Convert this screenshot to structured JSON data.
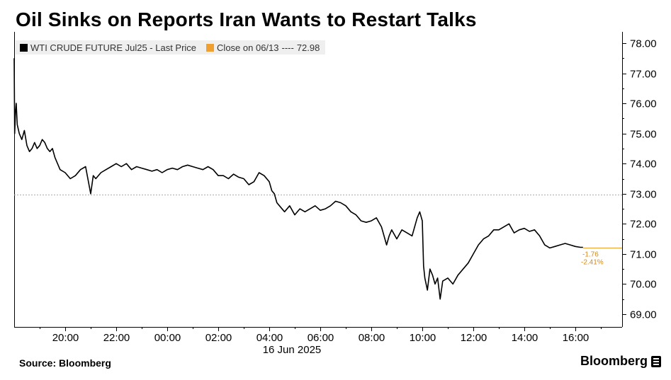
{
  "title": "Oil Sinks on Reports Iran Wants to Restart Talks",
  "legend": {
    "series_label": "WTI CRUDE FUTURE Jul25 - Last Price",
    "close_label": "Close on 06/13",
    "close_dashes": "----",
    "close_value": "72.98"
  },
  "source": "Source:  Bloomberg",
  "brand": "Bloomberg",
  "chart_data": {
    "type": "line",
    "title": "Oil Sinks on Reports Iran Wants to Restart Talks",
    "xlabel": "16 Jun 2025",
    "ylabel": "",
    "x_unit": "hours (time of day)",
    "xlim": [
      18.0,
      17.55
    ],
    "ylim": [
      68.8,
      78.2
    ],
    "x_ticks": [
      {
        "x": 20.0,
        "label": "20:00"
      },
      {
        "x": 22.0,
        "label": "22:00"
      },
      {
        "x": 24.0,
        "label": "00:00"
      },
      {
        "x": 26.0,
        "label": "02:00"
      },
      {
        "x": 28.0,
        "label": "04:00"
      },
      {
        "x": 30.0,
        "label": "06:00"
      },
      {
        "x": 32.0,
        "label": "08:00"
      },
      {
        "x": 34.0,
        "label": "10:00"
      },
      {
        "x": 36.0,
        "label": "12:00"
      },
      {
        "x": 38.0,
        "label": "14:00"
      },
      {
        "x": 40.0,
        "label": "16:00"
      }
    ],
    "date_label": "16 Jun 2025",
    "y_ticks": [
      "69.00",
      "70.00",
      "71.00",
      "72.00",
      "73.00",
      "74.00",
      "75.00",
      "76.00",
      "77.00",
      "78.00"
    ],
    "grid": false,
    "legend_position": "top-left",
    "colors": {
      "series": "#000000",
      "close": "#f0a030"
    },
    "reference_line": {
      "name": "Close on 06/13",
      "value": 72.98
    },
    "annotations": {
      "change": "-1.76",
      "change_pct": "-2.41%",
      "last": 71.22
    },
    "series": [
      {
        "name": "WTI CRUDE FUTURE Jul25 - Last Price",
        "x": [
          18.0,
          18.02,
          18.05,
          18.08,
          18.12,
          18.2,
          18.3,
          18.4,
          18.5,
          18.6,
          18.7,
          18.8,
          18.9,
          19.0,
          19.1,
          19.2,
          19.3,
          19.4,
          19.5,
          19.6,
          19.7,
          19.8,
          20.0,
          20.2,
          20.4,
          20.6,
          20.8,
          21.0,
          21.05,
          21.1,
          21.2,
          21.4,
          21.6,
          21.8,
          22.0,
          22.2,
          22.4,
          22.6,
          22.8,
          23.0,
          23.2,
          23.4,
          23.6,
          23.8,
          24.0,
          24.2,
          24.4,
          24.6,
          24.8,
          25.0,
          25.2,
          25.4,
          25.6,
          25.8,
          26.0,
          26.2,
          26.4,
          26.6,
          26.8,
          27.0,
          27.2,
          27.4,
          27.6,
          27.8,
          28.0,
          28.1,
          28.2,
          28.3,
          28.4,
          28.6,
          28.8,
          29.0,
          29.2,
          29.4,
          29.6,
          29.8,
          30.0,
          30.2,
          30.4,
          30.6,
          30.8,
          31.0,
          31.2,
          31.4,
          31.6,
          31.8,
          32.0,
          32.2,
          32.4,
          32.6,
          32.7,
          32.8,
          33.0,
          33.2,
          33.4,
          33.6,
          33.8,
          33.9,
          34.0,
          34.05,
          34.1,
          34.2,
          34.3,
          34.4,
          34.5,
          34.6,
          34.7,
          34.8,
          35.0,
          35.2,
          35.4,
          35.6,
          35.8,
          36.0,
          36.2,
          36.4,
          36.6,
          36.8,
          37.0,
          37.2,
          37.4,
          37.6,
          37.8,
          38.0,
          38.2,
          38.4,
          38.6,
          38.8,
          39.0,
          39.2,
          39.4,
          39.6,
          39.8,
          40.0,
          40.2,
          40.3
        ],
        "values": [
          77.5,
          75.0,
          75.7,
          76.0,
          75.3,
          75.0,
          74.8,
          75.1,
          74.6,
          74.4,
          74.5,
          74.7,
          74.5,
          74.6,
          74.8,
          74.7,
          74.5,
          74.4,
          74.5,
          74.2,
          74.0,
          73.8,
          73.7,
          73.5,
          73.6,
          73.8,
          73.9,
          73.0,
          73.3,
          73.6,
          73.5,
          73.7,
          73.8,
          73.9,
          74.0,
          73.9,
          74.0,
          73.8,
          73.9,
          73.85,
          73.8,
          73.75,
          73.8,
          73.7,
          73.8,
          73.85,
          73.8,
          73.9,
          73.95,
          73.9,
          73.85,
          73.8,
          73.9,
          73.8,
          73.6,
          73.6,
          73.5,
          73.65,
          73.55,
          73.5,
          73.3,
          73.4,
          73.7,
          73.6,
          73.4,
          73.1,
          73.0,
          72.7,
          72.6,
          72.4,
          72.6,
          72.3,
          72.5,
          72.4,
          72.5,
          72.6,
          72.45,
          72.5,
          72.6,
          72.75,
          72.7,
          72.6,
          72.4,
          72.3,
          72.1,
          72.05,
          72.1,
          72.2,
          71.9,
          71.3,
          71.6,
          71.8,
          71.5,
          71.8,
          71.7,
          71.6,
          72.2,
          72.4,
          72.1,
          70.6,
          70.2,
          69.8,
          70.5,
          70.3,
          70.0,
          70.2,
          69.5,
          70.1,
          70.2,
          70.0,
          70.3,
          70.5,
          70.7,
          71.0,
          71.3,
          71.5,
          71.6,
          71.8,
          71.8,
          71.9,
          72.0,
          71.7,
          71.8,
          71.85,
          71.75,
          71.8,
          71.6,
          71.3,
          71.2,
          71.25,
          71.3,
          71.35,
          71.3,
          71.25,
          71.22,
          71.22
        ]
      }
    ]
  }
}
